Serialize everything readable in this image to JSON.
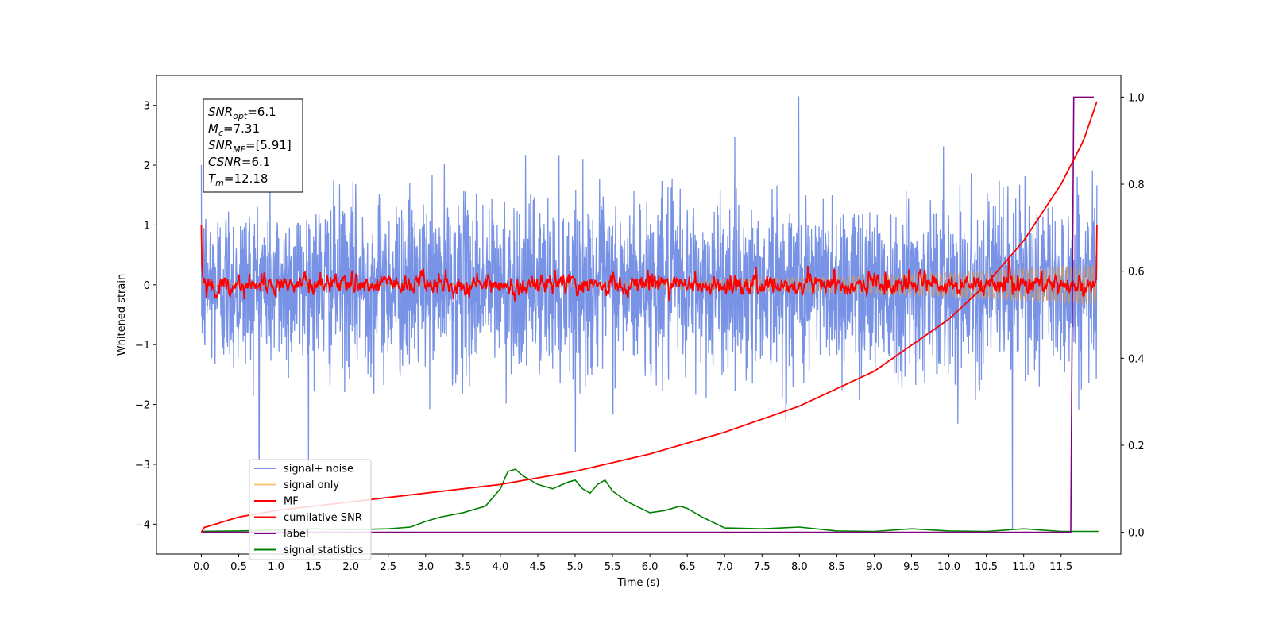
{
  "chart_data": {
    "type": "line",
    "title": "",
    "xlabel": "Time (s)",
    "ylabel": "Whitened strain",
    "ylabel_right": "",
    "xlim": [
      -0.6,
      12.3
    ],
    "ylim": [
      -4.5,
      3.5
    ],
    "ylim_right": [
      -0.05,
      1.05
    ],
    "x_ticks": [
      "0.0",
      "0.5",
      "1.0",
      "1.5",
      "2.0",
      "2.5",
      "3.0",
      "3.5",
      "4.0",
      "4.5",
      "5.0",
      "5.5",
      "6.0",
      "6.5",
      "7.0",
      "7.5",
      "8.0",
      "8.5",
      "9.0",
      "9.5",
      "10.0",
      "10.5",
      "11.0",
      "11.5"
    ],
    "y_ticks": [
      "3",
      "2",
      "1",
      "0",
      "−1",
      "−2",
      "−3",
      "−4"
    ],
    "y_ticks_right": [
      "1.0",
      "0.8",
      "0.6",
      "0.4",
      "0.2",
      "0.0"
    ],
    "grid": false,
    "legend_position": "lower-left",
    "info_box": {
      "lines": [
        {
          "sym": "SNR",
          "sub": "opt",
          "val": "=6.1"
        },
        {
          "sym": "M",
          "sub": "c",
          "val": "=7.31"
        },
        {
          "sym": "SNR",
          "sub": "MF",
          "val": "=[5.91]"
        },
        {
          "sym": "CSNR",
          "sub": "",
          "val": "=6.1"
        },
        {
          "sym": "T",
          "sub": "m",
          "val": "=12.18"
        }
      ]
    },
    "series": [
      {
        "name": "signal+ noise",
        "color": "#7893e6",
        "axis": "left",
        "noise_sigma": 0.85,
        "spikes": [
          {
            "x": 10.85,
            "y": -4.1
          },
          {
            "x": 7.99,
            "y": 3.15
          },
          {
            "x": 0.77,
            "y": -2.9
          }
        ]
      },
      {
        "name": "signal only",
        "color": "#f5c87a",
        "axis": "left",
        "amplitude_start": 0.02,
        "amplitude_end": 0.35
      },
      {
        "name": "MF",
        "color": "#ff0000",
        "axis": "left",
        "noise_sigma": 0.14,
        "start_value": 1.0
      },
      {
        "name": "cumilative SNR",
        "color": "#ff0000",
        "axis": "right",
        "x": [
          0.0,
          0.02,
          0.5,
          1.0,
          2.0,
          3.0,
          4.0,
          5.0,
          6.0,
          7.0,
          8.0,
          9.0,
          10.0,
          10.5,
          11.0,
          11.5,
          11.8,
          12.0
        ],
        "y": [
          0.0,
          0.01,
          0.035,
          0.05,
          0.07,
          0.09,
          0.11,
          0.14,
          0.18,
          0.23,
          0.29,
          0.37,
          0.49,
          0.57,
          0.67,
          0.8,
          0.9,
          1.0
        ]
      },
      {
        "name": "label",
        "color": "#800080",
        "axis": "right",
        "x": [
          0.0,
          11.63,
          11.67,
          11.94
        ],
        "y": [
          0.0,
          0.0,
          1.0,
          1.0
        ]
      },
      {
        "name": "signal statistics",
        "color": "#008000",
        "axis": "right",
        "x": [
          0.0,
          0.5,
          1.0,
          1.5,
          2.0,
          2.5,
          2.8,
          3.0,
          3.2,
          3.5,
          3.8,
          4.0,
          4.1,
          4.2,
          4.3,
          4.5,
          4.7,
          4.9,
          5.0,
          5.1,
          5.2,
          5.3,
          5.4,
          5.5,
          5.7,
          6.0,
          6.2,
          6.4,
          6.5,
          6.7,
          7.0,
          7.5,
          8.0,
          8.5,
          9.0,
          9.5,
          10.0,
          10.5,
          11.0,
          11.5,
          12.0
        ],
        "y": [
          0.002,
          0.003,
          0.005,
          0.008,
          0.006,
          0.008,
          0.012,
          0.025,
          0.035,
          0.045,
          0.06,
          0.1,
          0.14,
          0.145,
          0.13,
          0.11,
          0.1,
          0.115,
          0.12,
          0.1,
          0.09,
          0.11,
          0.12,
          0.095,
          0.07,
          0.045,
          0.05,
          0.06,
          0.055,
          0.035,
          0.01,
          0.008,
          0.012,
          0.003,
          0.002,
          0.008,
          0.003,
          0.002,
          0.008,
          0.002,
          0.002
        ]
      }
    ]
  }
}
